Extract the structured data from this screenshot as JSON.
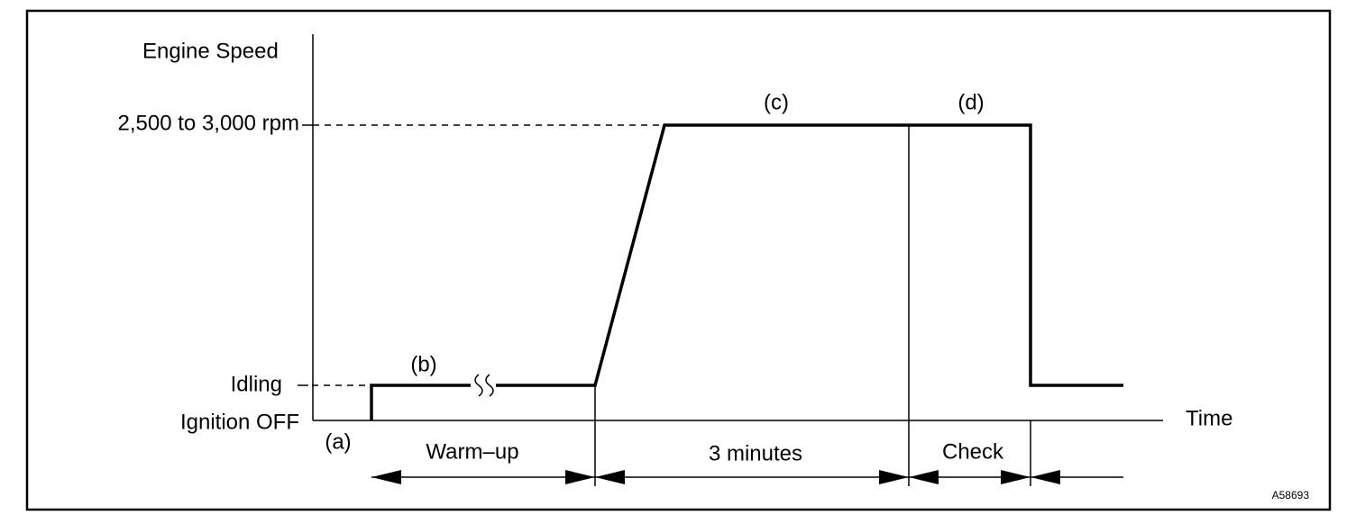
{
  "axis": {
    "y_title": "Engine Speed",
    "x_title": "Time",
    "levels": [
      "2,500 to 3,000 rpm",
      "Idling",
      "Ignition OFF"
    ]
  },
  "phases": {
    "labels": [
      "(a)",
      "(b)",
      "(c)",
      "(d)"
    ],
    "durations": [
      "Warm–up",
      "3 minutes",
      "Check"
    ]
  },
  "figure_id": "A58693"
}
